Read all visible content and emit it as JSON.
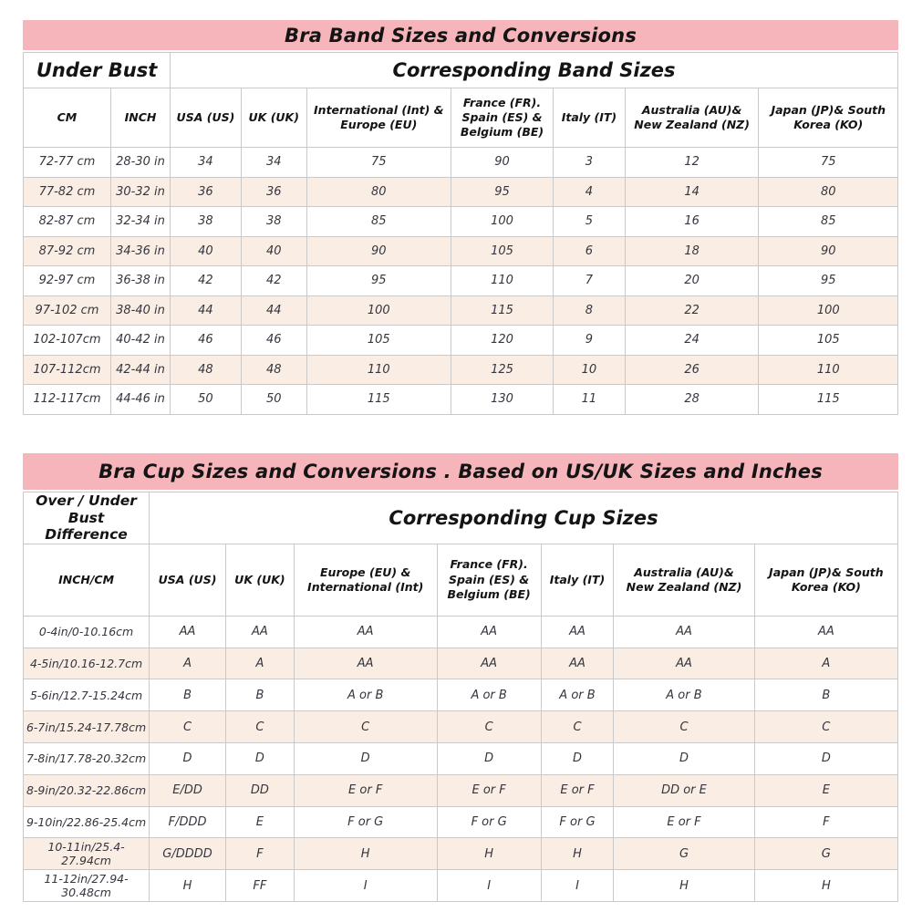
{
  "colors": {
    "title_bar_pink": "#f5b5ba",
    "row_alt_peach": "#faeee4",
    "row_white": "#ffffff",
    "cell_border": "#c9c9c9",
    "header_text": "#141414",
    "data_text": "#35353f"
  },
  "band_table": {
    "title": "Bra Band Sizes and Conversions",
    "group_left": "Under Bust",
    "group_right": "Corresponding Band Sizes",
    "columns": [
      "CM",
      "INCH",
      "USA (US)",
      "UK (UK)",
      "International (Int) & Europe (EU)",
      "France (FR). Spain (ES) & Belgium (BE)",
      "Italy (IT)",
      "Australia (AU)& New Zealand (NZ)",
      "Japan (JP)& South Korea (KO)"
    ],
    "rows": [
      [
        "72-77 cm",
        "28-30 in",
        "34",
        "34",
        "75",
        "90",
        "3",
        "12",
        "75"
      ],
      [
        "77-82 cm",
        "30-32 in",
        "36",
        "36",
        "80",
        "95",
        "4",
        "14",
        "80"
      ],
      [
        "82-87 cm",
        "32-34 in",
        "38",
        "38",
        "85",
        "100",
        "5",
        "16",
        "85"
      ],
      [
        "87-92 cm",
        "34-36 in",
        "40",
        "40",
        "90",
        "105",
        "6",
        "18",
        "90"
      ],
      [
        "92-97 cm",
        "36-38 in",
        "42",
        "42",
        "95",
        "110",
        "7",
        "20",
        "95"
      ],
      [
        "97-102 cm",
        "38-40 in",
        "44",
        "44",
        "100",
        "115",
        "8",
        "22",
        "100"
      ],
      [
        "102-107cm",
        "40-42 in",
        "46",
        "46",
        "105",
        "120",
        "9",
        "24",
        "105"
      ],
      [
        "107-112cm",
        "42-44 in",
        "48",
        "48",
        "110",
        "125",
        "10",
        "26",
        "110"
      ],
      [
        "112-117cm",
        "44-46 in",
        "50",
        "50",
        "115",
        "130",
        "11",
        "28",
        "115"
      ]
    ]
  },
  "cup_table": {
    "title": "Bra Cup Sizes and Conversions . Based on US/UK Sizes and Inches",
    "group_left": "Over / Under Bust Difference",
    "group_right": "Corresponding Cup Sizes",
    "columns": [
      "INCH/CM",
      "USA (US)",
      "UK (UK)",
      "Europe (EU) & International (Int)",
      "France (FR). Spain (ES) & Belgium (BE)",
      "Italy (IT)",
      "Australia (AU)& New Zealand (NZ)",
      "Japan (JP)& South Korea (KO)"
    ],
    "rows": [
      [
        "0-4in/0-10.16cm",
        "AA",
        "AA",
        "AA",
        "AA",
        "AA",
        "AA",
        "AA"
      ],
      [
        "4-5in/10.16-12.7cm",
        "A",
        "A",
        "AA",
        "AA",
        "AA",
        "AA",
        "A"
      ],
      [
        "5-6in/12.7-15.24cm",
        "B",
        "B",
        "A or B",
        "A or B",
        "A or B",
        "A or B",
        "B"
      ],
      [
        "6-7in/15.24-17.78cm",
        "C",
        "C",
        "C",
        "C",
        "C",
        "C",
        "C"
      ],
      [
        "7-8in/17.78-20.32cm",
        "D",
        "D",
        "D",
        "D",
        "D",
        "D",
        "D"
      ],
      [
        "8-9in/20.32-22.86cm",
        "E/DD",
        "DD",
        "E or F",
        "E or F",
        "E or F",
        "DD or E",
        "E"
      ],
      [
        "9-10in/22.86-25.4cm",
        "F/DDD",
        "E",
        "F or G",
        "F or G",
        "F or G",
        "E or F",
        "F"
      ],
      [
        "10-11in/25.4-27.94cm",
        "G/DDDD",
        "F",
        "H",
        "H",
        "H",
        "G",
        "G"
      ],
      [
        "11-12in/27.94-30.48cm",
        "H",
        "FF",
        "I",
        "I",
        "I",
        "H",
        "H"
      ]
    ]
  }
}
